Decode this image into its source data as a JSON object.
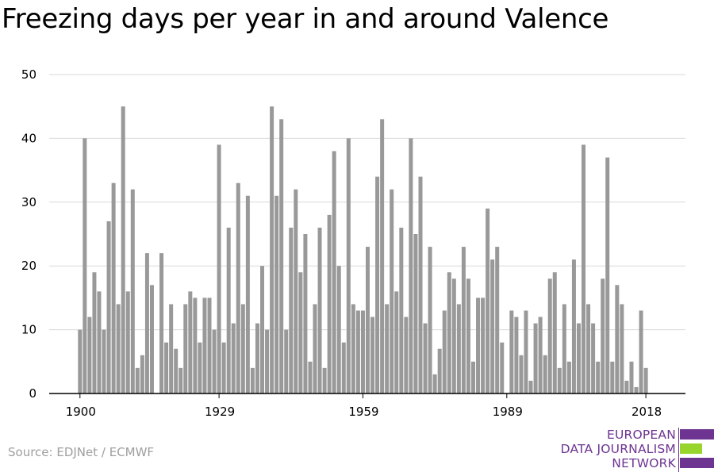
{
  "page": {
    "title": "Freezing days per year in and around Valence",
    "source": "Source: EDJNet / ECMWF",
    "logo": {
      "line1": "EUROPEAN",
      "line2": "DATA JOURNALISM",
      "line3": "NETWORK"
    }
  },
  "colors": {
    "bar": "#999999",
    "grid": "#d9d9d9",
    "axis": "#000000",
    "logo_purple": "#6d3491",
    "logo_green": "#97d42c"
  },
  "chart_data": {
    "type": "bar",
    "title": "Freezing days per year in and around Valence",
    "xlabel": "",
    "ylabel": "",
    "ylim": [
      0,
      50
    ],
    "yticks": [
      0,
      10,
      20,
      30,
      40,
      50
    ],
    "xticks": [
      1900,
      1929,
      1959,
      1989,
      2018
    ],
    "grid": true,
    "x_start": 1900,
    "values": [
      10,
      40,
      12,
      19,
      16,
      10,
      27,
      33,
      14,
      45,
      16,
      32,
      4,
      6,
      22,
      17,
      0,
      22,
      8,
      14,
      7,
      4,
      14,
      16,
      15,
      8,
      15,
      15,
      10,
      39,
      8,
      26,
      11,
      33,
      14,
      31,
      4,
      11,
      20,
      10,
      45,
      31,
      43,
      10,
      26,
      32,
      19,
      25,
      5,
      14,
      26,
      4,
      28,
      38,
      20,
      8,
      40,
      14,
      13,
      13,
      23,
      12,
      34,
      43,
      14,
      32,
      16,
      26,
      12,
      40,
      25,
      34,
      11,
      23,
      3,
      7,
      13,
      19,
      18,
      14,
      23,
      18,
      5,
      15,
      15,
      29,
      21,
      23,
      8,
      0,
      13,
      12,
      6,
      13,
      2,
      11,
      12,
      6,
      18,
      19,
      4,
      14,
      5,
      21,
      11,
      39,
      14,
      11,
      5,
      18,
      37,
      5,
      17,
      14,
      2,
      5,
      1,
      13,
      4
    ]
  }
}
